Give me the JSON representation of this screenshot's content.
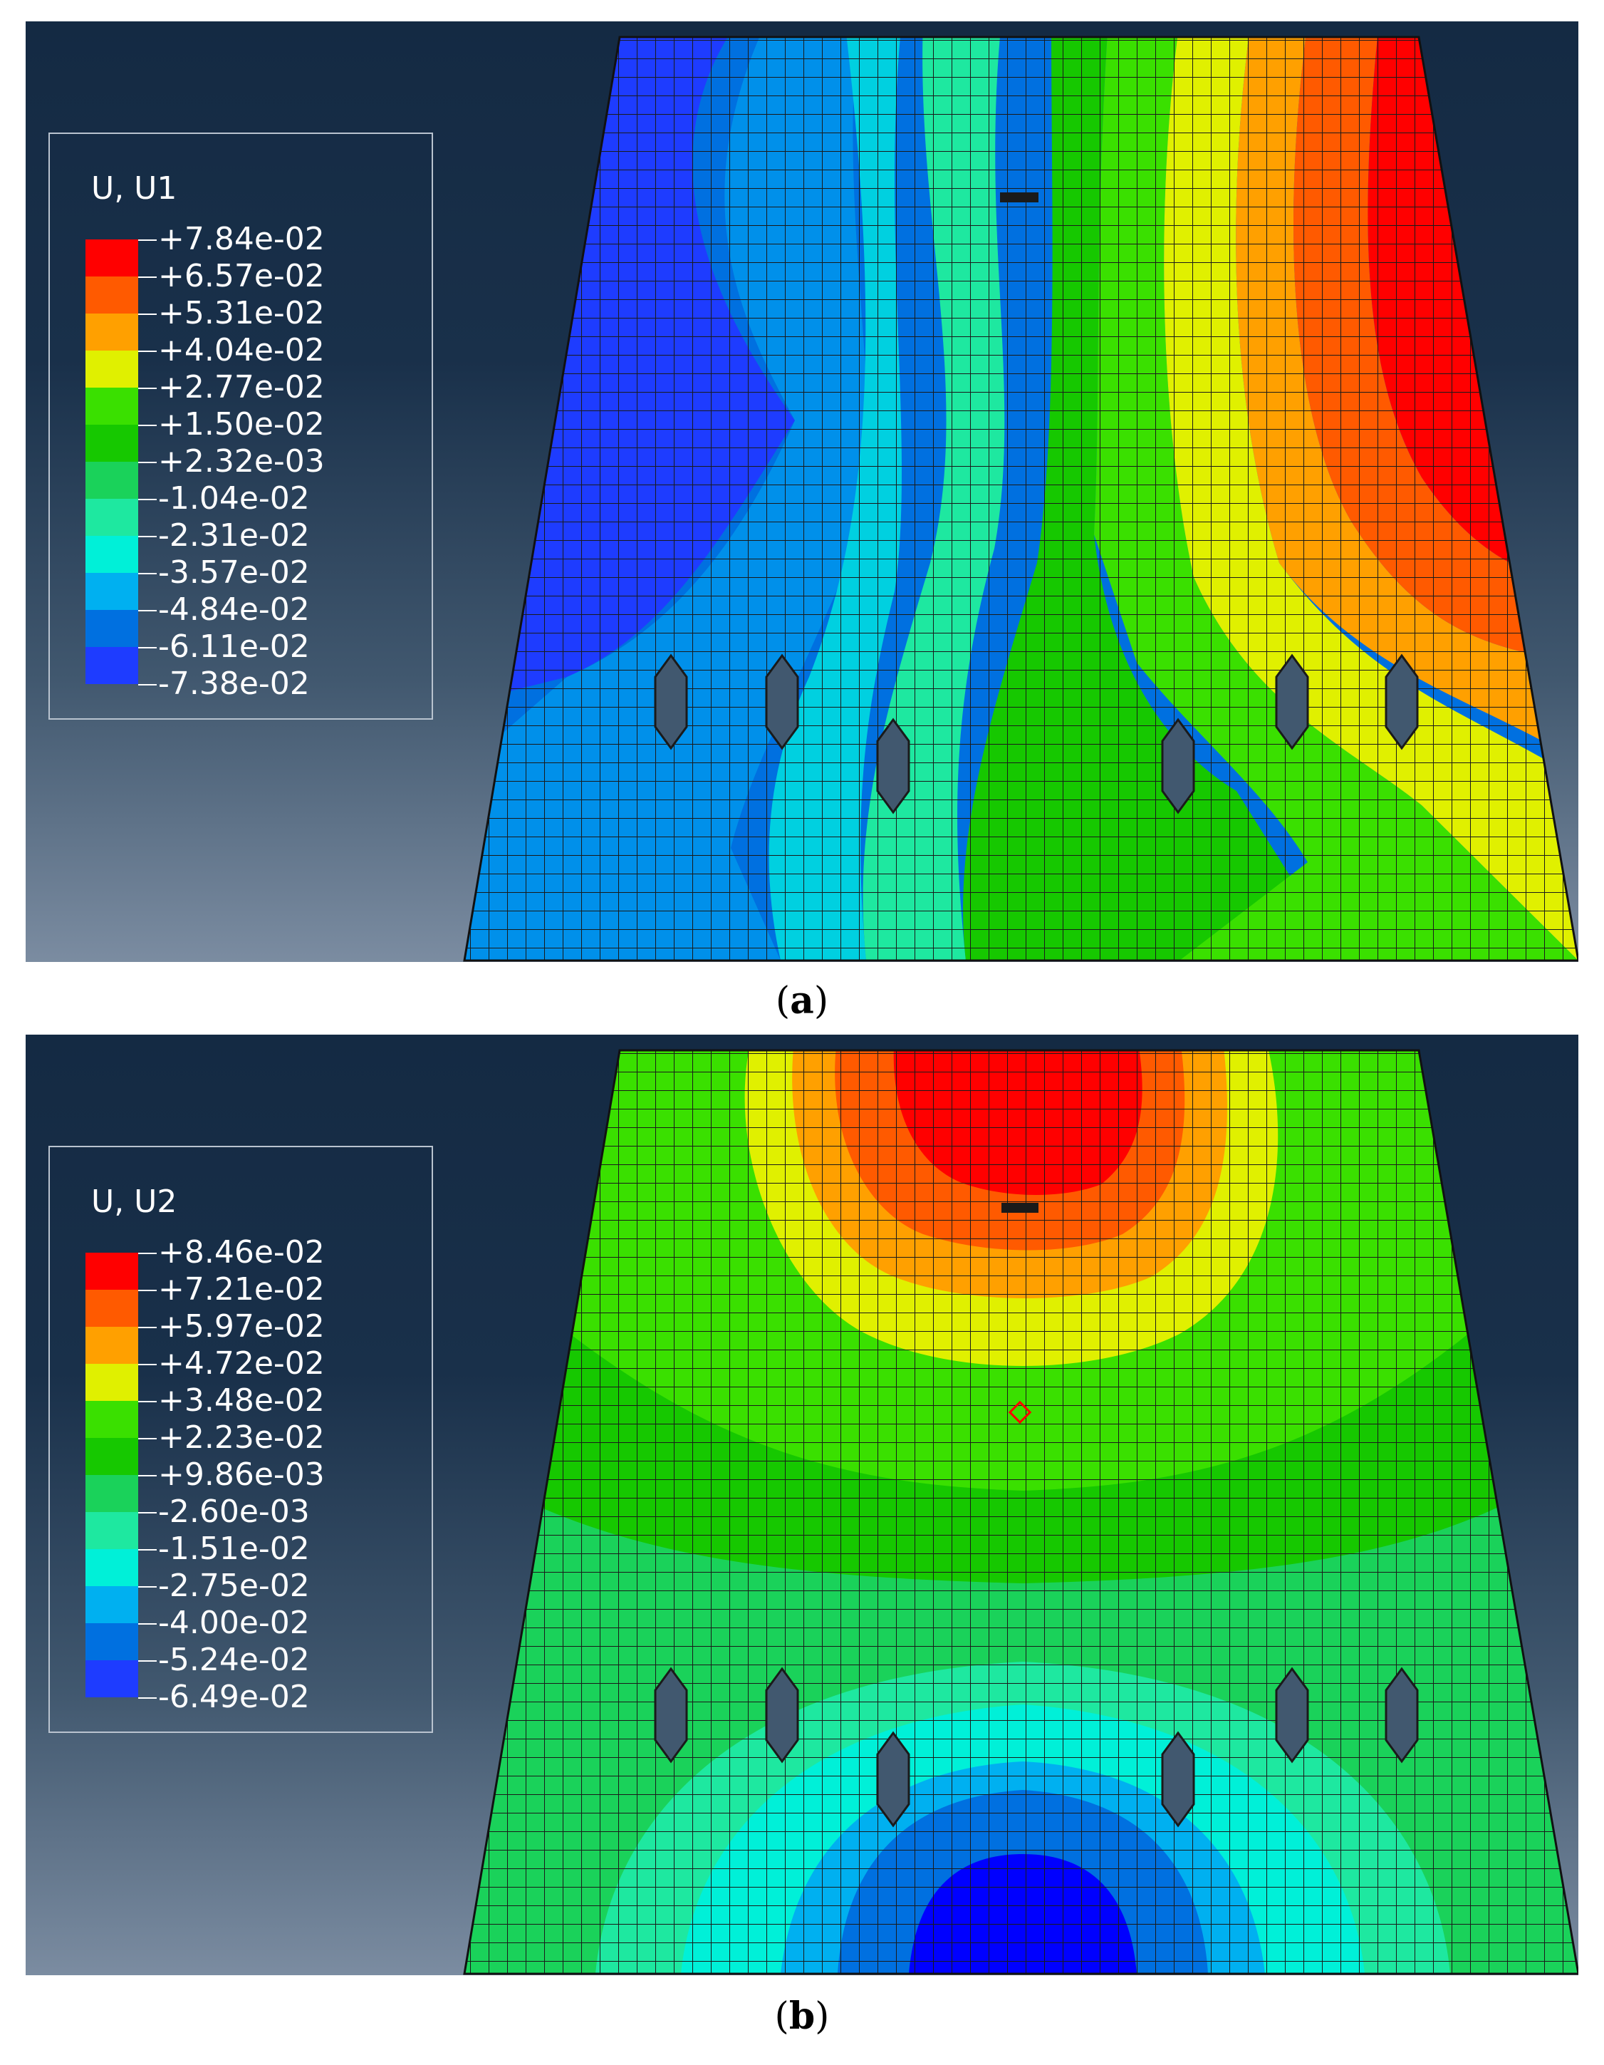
{
  "figures": [
    {
      "id": "a",
      "legend": {
        "title": "U, U1",
        "values": [
          "+7.84e-02",
          "+6.57e-02",
          "+5.31e-02",
          "+4.04e-02",
          "+2.77e-02",
          "+1.50e-02",
          "+2.32e-03",
          "-1.04e-02",
          "-2.31e-02",
          "-3.57e-02",
          "-4.84e-02",
          "-6.11e-02",
          "-7.38e-02"
        ],
        "colors": [
          "#ff0000",
          "#ff5a00",
          "#ffa000",
          "#e0f000",
          "#3ae000",
          "#16c800",
          "#1ad25a",
          "#1ee8a0",
          "#00f0d8",
          "#00b0f0",
          "#0070e0",
          "#1e3cff",
          "#0000ff"
        ]
      },
      "caption": {
        "open": "(",
        "letter": "a",
        "close": ")"
      }
    },
    {
      "id": "b",
      "legend": {
        "title": "U, U2",
        "values": [
          "+8.46e-02",
          "+7.21e-02",
          "+5.97e-02",
          "+4.72e-02",
          "+3.48e-02",
          "+2.23e-02",
          "+9.86e-03",
          "-2.60e-03",
          "-1.51e-02",
          "-2.75e-02",
          "-4.00e-02",
          "-5.24e-02",
          "-6.49e-02"
        ],
        "colors": [
          "#ff0000",
          "#ff5a00",
          "#ffa000",
          "#e0f000",
          "#3ae000",
          "#16c800",
          "#1ad25a",
          "#1ee8a0",
          "#00f0d8",
          "#00b0f0",
          "#0070e0",
          "#1e3cff",
          "#0000ff"
        ]
      },
      "caption": {
        "open": "(",
        "letter": "b",
        "close": ")"
      }
    }
  ]
}
